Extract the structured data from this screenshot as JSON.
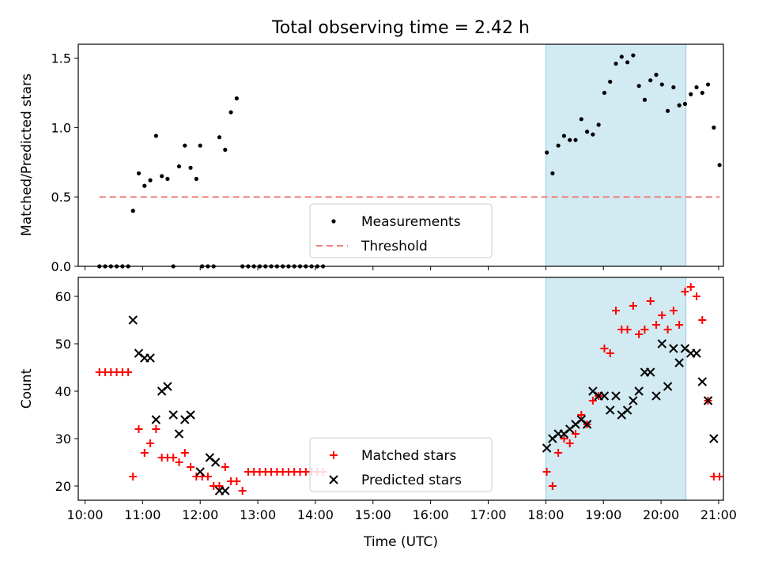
{
  "chart_data": [
    {
      "type": "scatter",
      "title": "Total observing time = 2.42 h",
      "xlabel": "",
      "ylabel": "Matched/Predicted stars",
      "xlim": [
        "09:53",
        "21:05"
      ],
      "ylim": [
        0,
        1.6
      ],
      "yticks": [
        "0.0",
        "0.5",
        "1.0",
        "1.5"
      ],
      "grid": false,
      "legend_position": "bottom-center",
      "highlight_span": {
        "start": "18:00",
        "end": "20:26",
        "color": "#add8e6"
      },
      "series": [
        {
          "name": "Measurements",
          "marker": "dot",
          "color": "#000000",
          "points": [
            [
              "10:15",
              0
            ],
            [
              "10:21",
              0
            ],
            [
              "10:27",
              0
            ],
            [
              "10:33",
              0
            ],
            [
              "10:39",
              0
            ],
            [
              "10:45",
              0
            ],
            [
              "10:50",
              0.4
            ],
            [
              "10:56",
              0.67
            ],
            [
              "11:02",
              0.58
            ],
            [
              "11:08",
              0.62
            ],
            [
              "11:14",
              0.94
            ],
            [
              "11:20",
              0.65
            ],
            [
              "11:26",
              0.63
            ],
            [
              "11:32",
              0
            ],
            [
              "11:38",
              0.72
            ],
            [
              "11:44",
              0.87
            ],
            [
              "11:50",
              0.71
            ],
            [
              "11:56",
              0.63
            ],
            [
              "12:02",
              0
            ],
            [
              "12:08",
              0
            ],
            [
              "12:00",
              0.87
            ],
            [
              "12:14",
              0
            ],
            [
              "12:20",
              0.93
            ],
            [
              "12:26",
              0.84
            ],
            [
              "12:32",
              1.11
            ],
            [
              "12:38",
              1.21
            ],
            [
              "12:44",
              0
            ],
            [
              "12:50",
              0
            ],
            [
              "12:56",
              0
            ],
            [
              "13:02",
              0
            ],
            [
              "13:08",
              0
            ],
            [
              "13:14",
              0
            ],
            [
              "13:20",
              0
            ],
            [
              "13:26",
              0
            ],
            [
              "13:32",
              0
            ],
            [
              "13:38",
              0
            ],
            [
              "13:44",
              0
            ],
            [
              "13:50",
              0
            ],
            [
              "13:56",
              0
            ],
            [
              "14:02",
              0
            ],
            [
              "14:08",
              0
            ],
            [
              "18:01",
              0.82
            ],
            [
              "18:07",
              0.67
            ],
            [
              "18:13",
              0.87
            ],
            [
              "18:19",
              0.94
            ],
            [
              "18:25",
              0.91
            ],
            [
              "18:31",
              0.91
            ],
            [
              "18:37",
              1.06
            ],
            [
              "18:43",
              0.97
            ],
            [
              "18:49",
              0.95
            ],
            [
              "18:55",
              1.02
            ],
            [
              "19:01",
              1.25
            ],
            [
              "19:07",
              1.33
            ],
            [
              "19:13",
              1.46
            ],
            [
              "19:19",
              1.51
            ],
            [
              "19:25",
              1.47
            ],
            [
              "19:31",
              1.52
            ],
            [
              "19:37",
              1.3
            ],
            [
              "19:43",
              1.2
            ],
            [
              "19:49",
              1.34
            ],
            [
              "19:55",
              1.38
            ],
            [
              "20:01",
              1.31
            ],
            [
              "20:07",
              1.12
            ],
            [
              "20:13",
              1.29
            ],
            [
              "20:19",
              1.16
            ],
            [
              "20:25",
              1.17
            ],
            [
              "20:31",
              1.24
            ],
            [
              "20:37",
              1.29
            ],
            [
              "20:43",
              1.25
            ],
            [
              "20:49",
              1.31
            ],
            [
              "20:55",
              1.0
            ],
            [
              "21:01",
              0.73
            ]
          ]
        },
        {
          "name": "Threshold",
          "line_style": "dashed",
          "color": "#f08080",
          "points": [
            [
              "10:15",
              0.5
            ],
            [
              "21:01",
              0.5
            ]
          ]
        }
      ]
    },
    {
      "type": "scatter",
      "title": "",
      "xlabel": "Time (UTC)",
      "ylabel": "Count",
      "xlim": [
        "09:53",
        "21:05"
      ],
      "ylim": [
        17,
        64
      ],
      "xticks": [
        "10:00",
        "11:00",
        "12:00",
        "13:00",
        "14:00",
        "15:00",
        "16:00",
        "17:00",
        "18:00",
        "19:00",
        "20:00",
        "21:00"
      ],
      "yticks": [
        "20",
        "30",
        "40",
        "50",
        "60"
      ],
      "grid": false,
      "legend_position": "bottom-center",
      "highlight_span": {
        "start": "18:00",
        "end": "20:26",
        "color": "#add8e6"
      },
      "series": [
        {
          "name": "Matched stars",
          "marker": "plus",
          "color": "#ff0000",
          "points": [
            [
              "10:15",
              44
            ],
            [
              "10:21",
              44
            ],
            [
              "10:27",
              44
            ],
            [
              "10:33",
              44
            ],
            [
              "10:39",
              44
            ],
            [
              "10:45",
              44
            ],
            [
              "10:50",
              22
            ],
            [
              "10:56",
              32
            ],
            [
              "11:02",
              27
            ],
            [
              "11:08",
              29
            ],
            [
              "11:14",
              32
            ],
            [
              "11:20",
              26
            ],
            [
              "11:26",
              26
            ],
            [
              "11:32",
              26
            ],
            [
              "11:38",
              25
            ],
            [
              "11:44",
              27
            ],
            [
              "11:50",
              24
            ],
            [
              "11:56",
              22
            ],
            [
              "12:02",
              22
            ],
            [
              "12:08",
              22
            ],
            [
              "12:14",
              20
            ],
            [
              "12:20",
              20
            ],
            [
              "12:26",
              24
            ],
            [
              "12:32",
              21
            ],
            [
              "12:38",
              21
            ],
            [
              "12:44",
              19
            ],
            [
              "12:50",
              23
            ],
            [
              "12:56",
              23
            ],
            [
              "13:02",
              23
            ],
            [
              "13:08",
              23
            ],
            [
              "13:14",
              23
            ],
            [
              "13:20",
              23
            ],
            [
              "13:26",
              23
            ],
            [
              "13:32",
              23
            ],
            [
              "13:38",
              23
            ],
            [
              "13:44",
              23
            ],
            [
              "13:50",
              23
            ],
            [
              "13:56",
              23
            ],
            [
              "14:02",
              23
            ],
            [
              "14:08",
              23
            ],
            [
              "18:01",
              23
            ],
            [
              "18:07",
              20
            ],
            [
              "18:13",
              27
            ],
            [
              "18:19",
              30
            ],
            [
              "18:25",
              29
            ],
            [
              "18:31",
              31
            ],
            [
              "18:37",
              35
            ],
            [
              "18:43",
              33
            ],
            [
              "18:49",
              38
            ],
            [
              "18:55",
              39
            ],
            [
              "19:01",
              49
            ],
            [
              "19:07",
              48
            ],
            [
              "19:13",
              57
            ],
            [
              "19:19",
              53
            ],
            [
              "19:25",
              53
            ],
            [
              "19:31",
              58
            ],
            [
              "19:37",
              52
            ],
            [
              "19:43",
              53
            ],
            [
              "19:49",
              59
            ],
            [
              "19:55",
              54
            ],
            [
              "20:01",
              56
            ],
            [
              "20:07",
              53
            ],
            [
              "20:13",
              57
            ],
            [
              "20:19",
              54
            ],
            [
              "20:25",
              61
            ],
            [
              "20:31",
              62
            ],
            [
              "20:37",
              60
            ],
            [
              "20:43",
              55
            ],
            [
              "20:49",
              38
            ],
            [
              "20:55",
              22
            ],
            [
              "21:01",
              22
            ]
          ]
        },
        {
          "name": "Predicted stars",
          "marker": "x",
          "color": "#000000",
          "points": [
            [
              "10:50",
              55
            ],
            [
              "10:56",
              48
            ],
            [
              "11:02",
              47
            ],
            [
              "11:08",
              47
            ],
            [
              "11:14",
              34
            ],
            [
              "11:20",
              40
            ],
            [
              "11:26",
              41
            ],
            [
              "11:32",
              35
            ],
            [
              "11:38",
              31
            ],
            [
              "11:44",
              34
            ],
            [
              "11:50",
              35
            ],
            [
              "12:00",
              23
            ],
            [
              "12:10",
              26
            ],
            [
              "12:16",
              25
            ],
            [
              "12:20",
              19
            ],
            [
              "12:26",
              19
            ],
            [
              "18:01",
              28
            ],
            [
              "18:07",
              30
            ],
            [
              "18:13",
              31
            ],
            [
              "18:19",
              31
            ],
            [
              "18:25",
              32
            ],
            [
              "18:31",
              33
            ],
            [
              "18:37",
              34
            ],
            [
              "18:43",
              33
            ],
            [
              "18:49",
              40
            ],
            [
              "18:55",
              39
            ],
            [
              "19:01",
              39
            ],
            [
              "19:07",
              36
            ],
            [
              "19:13",
              39
            ],
            [
              "19:19",
              35
            ],
            [
              "19:25",
              36
            ],
            [
              "19:31",
              38
            ],
            [
              "19:37",
              40
            ],
            [
              "19:43",
              44
            ],
            [
              "19:49",
              44
            ],
            [
              "19:55",
              39
            ],
            [
              "20:01",
              50
            ],
            [
              "20:07",
              41
            ],
            [
              "20:13",
              49
            ],
            [
              "20:19",
              46
            ],
            [
              "20:25",
              49
            ],
            [
              "20:31",
              48
            ],
            [
              "20:37",
              48
            ],
            [
              "20:43",
              42
            ],
            [
              "20:49",
              38
            ],
            [
              "20:55",
              30
            ]
          ]
        }
      ]
    }
  ]
}
